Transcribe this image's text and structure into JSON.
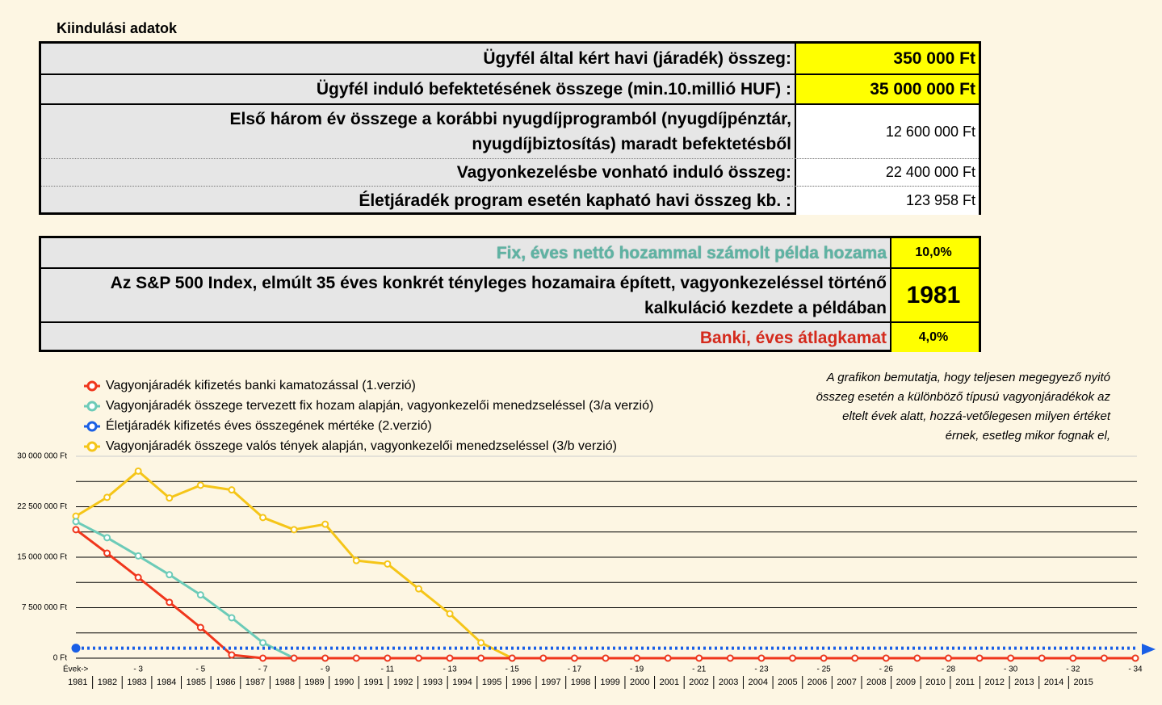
{
  "header": {
    "title": "Kiindulási adatok"
  },
  "table1": {
    "rows": [
      [
        "Ügyfél által kért havi  (járadék) összeg:",
        "350 000 Ft"
      ],
      [
        "Ügyfél induló befektetésének összege (min.10.millió HUF) :",
        "35 000 000 Ft"
      ],
      [
        "Első három év összege a korábbi nyugdíjprogramból (nyugdíjpénztár, nyugdíjbiztosítás)  maradt befektetésből",
        "12 600 000 Ft"
      ],
      [
        "Vagyonkezelésbe vonható induló összeg:",
        "22 400 000 Ft"
      ],
      [
        "Életjáradék program esetén kapható havi összeg kb. :",
        "123 958 Ft"
      ]
    ]
  },
  "table2": {
    "rows": [
      [
        "Fix, éves nettó hozammal számolt  példa hozama",
        "10,0%"
      ],
      [
        "Az S&P 500 Index, elmúlt 35 éves konkrét tényleges hozamaira épített, vagyonkezeléssel történő kalkuláció kezdete a példában",
        "1981"
      ],
      [
        "Banki, éves átlagkamat",
        "4,0%"
      ]
    ]
  },
  "note": [
    "A grafikon bemutatja, hogy teljesen megegyező nyitó",
    "összeg esetén a különböző típusú vagyonjáradékok az",
    "eltelt évek alatt, hozzá-vetőlegesen milyen értéket",
    "érnek, esetleg mikor fognak el,"
  ],
  "chart_data": {
    "type": "line",
    "categories": [
      "1981",
      "1982",
      "1983",
      "1984",
      "1985",
      "1986",
      "1987",
      "1988",
      "1989",
      "1990",
      "1991",
      "1992",
      "1993",
      "1994",
      "1995",
      "1996",
      "1997",
      "1998",
      "1999",
      "2000",
      "2001",
      "2002",
      "2003",
      "2004",
      "2005",
      "2006",
      "2007",
      "2008",
      "2009",
      "2010",
      "2011",
      "2012",
      "2013",
      "2014",
      "2015"
    ],
    "period_labels": [
      "Évek->",
      null,
      "- 3",
      null,
      "- 5",
      null,
      "- 7",
      null,
      "- 9",
      null,
      "- 11",
      null,
      "- 13",
      null,
      "- 15",
      null,
      "- 17",
      null,
      "- 19",
      null,
      "- 21",
      null,
      "- 23",
      null,
      "- 25",
      null,
      "- 26",
      null,
      "- 28",
      null,
      "- 30",
      null,
      "- 32",
      null,
      "- 34"
    ],
    "ylim": [
      0,
      30000000
    ],
    "yticks": [
      {
        "value": 0,
        "label": "0 Ft"
      },
      {
        "value": 7500000,
        "label": "7 500 000 Ft"
      },
      {
        "value": 15000000,
        "label": "15 000 000 Ft"
      },
      {
        "value": 22500000,
        "label": "22 500 000 Ft"
      },
      {
        "value": 30000000,
        "label": "30 000 000 Ft"
      }
    ],
    "minor_yticks": [
      3750000,
      11250000,
      18750000,
      26250000
    ],
    "grid": true,
    "series": [
      {
        "name": "Vagyonjáradék összege valós tények alapján, vagyonkezelői menedzseléssel (3/b verzió)",
        "color": "#f5c518",
        "values": [
          21100000,
          23900000,
          27800000,
          23800000,
          25700000,
          25000000,
          20900000,
          19100000,
          19900000,
          14500000,
          14000000,
          10300000,
          6600000,
          2300000,
          0,
          null,
          null,
          null,
          null,
          null,
          null,
          null,
          null,
          null,
          null,
          null,
          null,
          null,
          null,
          null,
          null,
          null,
          null,
          null,
          null
        ]
      },
      {
        "name": "Vagyonjáradék összege tervezett fix hozam alapján, vagyonkezelői menedzseléssel (3/a verzió)",
        "color": "#6ccbb8",
        "values": [
          20300000,
          17900000,
          15200000,
          12400000,
          9400000,
          6000000,
          2300000,
          0,
          0,
          0,
          0,
          0,
          0,
          0,
          0,
          0,
          0,
          0,
          0,
          0,
          0,
          0,
          0,
          0,
          0,
          0,
          0,
          0,
          0,
          0,
          0,
          0,
          0,
          0,
          0
        ]
      },
      {
        "name": "Vagyonjáradék kifizetés banki kamatozással  (1.verzió)",
        "color": "#f0361c",
        "values": [
          19100000,
          15600000,
          12000000,
          8300000,
          4560000,
          480000,
          0,
          0,
          0,
          0,
          0,
          0,
          0,
          0,
          0,
          0,
          0,
          0,
          0,
          0,
          0,
          0,
          0,
          0,
          0,
          0,
          0,
          0,
          0,
          0,
          0,
          0,
          0,
          0,
          0
        ]
      },
      {
        "name": "Életjáradék kifizetés éves összegének mértéke (2.verzió)",
        "color": "#1a5fe6",
        "line_style": "dotted",
        "values": [
          1487496,
          1487496,
          1487496,
          1487496,
          1487496,
          1487496,
          1487496,
          1487496,
          1487496,
          1487496,
          1487496,
          1487496,
          1487496,
          1487496,
          1487496,
          1487496,
          1487496,
          1487496,
          1487496,
          1487496,
          1487496,
          1487496,
          1487496,
          1487496,
          1487496,
          1487496,
          1487496,
          1487496,
          1487496,
          1487496,
          1487496,
          1487496,
          1487496,
          1487496,
          1487496
        ]
      }
    ],
    "legend_order": [
      2,
      1,
      3,
      0
    ]
  }
}
